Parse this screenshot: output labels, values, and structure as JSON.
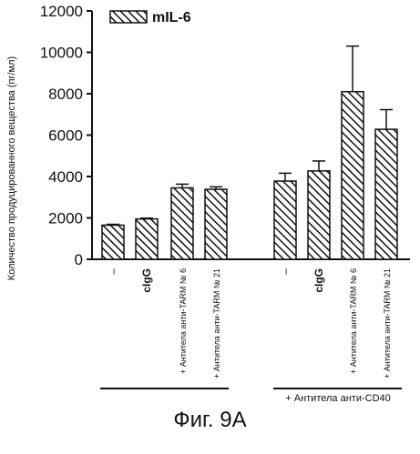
{
  "chart_data": {
    "type": "bar",
    "ylabel": "Количество продуцированного вещества (пг/мл)",
    "ylim": [
      0,
      12000
    ],
    "yticks": [
      0,
      2000,
      4000,
      6000,
      8000,
      10000,
      12000
    ],
    "ytick_labels": [
      "0",
      "2000",
      "4000",
      "6000",
      "8000",
      "10000",
      "12000"
    ],
    "legend": {
      "label": "mIL-6",
      "placement": "top-left",
      "pattern": "diagonal-hatch"
    },
    "groups": [
      {
        "label": "",
        "categories": [
          "–",
          "cIgG",
          "+ Антитела анти-TARM № 6",
          "+ Антитела анти-TARM № 21"
        ]
      },
      {
        "label": "+ Антитела анти-CD40",
        "categories": [
          "–",
          "cIgG",
          "+ Антитела анти-TARM № 6",
          "+ Антитела анти-TARM № 21"
        ]
      }
    ],
    "series": [
      {
        "name": "mIL-6",
        "values": [
          1650,
          1950,
          3450,
          3380,
          3780,
          4270,
          8100,
          6280
        ],
        "errors": [
          40,
          40,
          180,
          120,
          380,
          480,
          2200,
          950
        ]
      }
    ],
    "grid": false
  },
  "caption": "Фиг. 9A"
}
